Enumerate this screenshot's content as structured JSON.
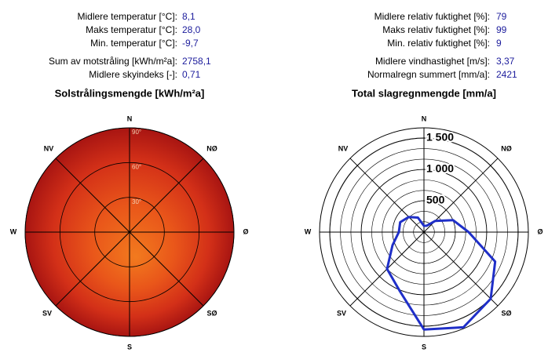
{
  "stats": {
    "left": [
      {
        "label": "Midlere temperatur [°C]:",
        "value": "8,1"
      },
      {
        "label": "Maks temperatur [°C]:",
        "value": "28,0"
      },
      {
        "label": "Min. temperatur [°C]:",
        "value": "-9,7"
      },
      {
        "label": "Sum av motstråling [kWh/m²a]:",
        "value": "2758,1"
      },
      {
        "label": "Midlere skyindeks [-]:",
        "value": "0,71"
      }
    ],
    "right": [
      {
        "label": "Midlere relativ fuktighet [%]:",
        "value": "79"
      },
      {
        "label": "Maks relativ fuktighet [%]:",
        "value": "99"
      },
      {
        "label": "Min. relativ fuktighet [%]:",
        "value": "9"
      },
      {
        "label": "Midlere vindhastighet [m/s]:",
        "value": "3,37"
      },
      {
        "label": "Normalregn summert [mm/a]:",
        "value": "2421"
      }
    ]
  },
  "chart_data": [
    {
      "type": "polar-heatmap",
      "title": "Solstrålingsmengde [kWh/m²a]",
      "directions": [
        "N",
        "NØ",
        "Ø",
        "SØ",
        "S",
        "SV",
        "W",
        "NV"
      ],
      "rlim": [
        0,
        90
      ],
      "rticks": [
        {
          "value": 30,
          "label": "30°"
        },
        {
          "value": 60,
          "label": "60°"
        },
        {
          "value": 90,
          "label": "90°"
        }
      ]
    },
    {
      "type": "polar-line",
      "title": "Total slagregnmengde [mm/a]",
      "directions": [
        "N",
        "NØ",
        "Ø",
        "SØ",
        "S",
        "SV",
        "W",
        "NV"
      ],
      "x": [
        0,
        22.5,
        45,
        67.5,
        90,
        112.5,
        135,
        157.5,
        180,
        202.5,
        225,
        247.5,
        270,
        292.5,
        315,
        337.5
      ],
      "values": [
        100,
        110,
        250,
        500,
        710,
        1225,
        1500,
        1640,
        1550,
        1010,
        830,
        540,
        400,
        410,
        340,
        250
      ],
      "color": "#1f2fc8",
      "rlim": [
        0,
        1660
      ],
      "rticks": [
        500,
        {
          "value": 1000,
          "label": "1 000"
        },
        {
          "value": 1500,
          "label": "1 500"
        }
      ]
    }
  ]
}
